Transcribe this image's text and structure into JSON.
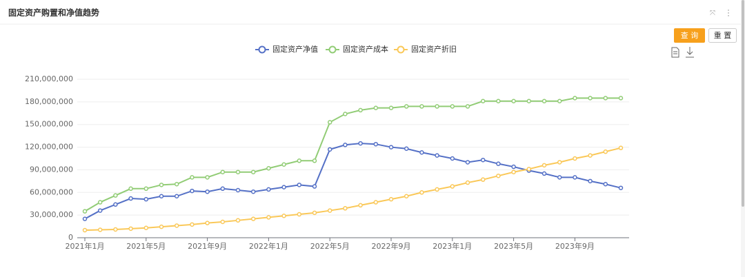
{
  "title": "固定资产购置和净值趋势",
  "buttons": [
    "查 询",
    "重 置"
  ],
  "chart_data": {
    "type": "line",
    "categories": [
      "2021年1月",
      null,
      null,
      null,
      "2021年5月",
      null,
      null,
      null,
      "2021年9月",
      null,
      null,
      null,
      "2022年1月",
      null,
      null,
      null,
      "2022年5月",
      null,
      null,
      null,
      "2022年9月",
      null,
      null,
      null,
      "2023年1月",
      null,
      null,
      null,
      "2023年5月",
      null,
      null,
      null,
      "2023年9月",
      null,
      null,
      null
    ],
    "series": [
      {
        "name": "固定资产净值",
        "color": "#5470c6",
        "values": [
          25000000,
          36000000,
          44000000,
          52000000,
          51000000,
          55000000,
          55000000,
          62000000,
          61000000,
          65000000,
          63000000,
          61000000,
          64000000,
          67000000,
          70000000,
          68000000,
          117000000,
          123000000,
          125000000,
          124000000,
          120000000,
          118000000,
          113000000,
          109000000,
          105000000,
          100000000,
          103000000,
          98000000,
          94000000,
          89000000,
          85000000,
          80000000,
          80000000,
          75000000,
          71000000,
          66000000
        ]
      },
      {
        "name": "固定资产成本",
        "color": "#91cc75",
        "values": [
          35000000,
          47000000,
          56000000,
          65000000,
          65000000,
          70000000,
          71000000,
          80000000,
          80000000,
          87000000,
          87000000,
          87000000,
          92000000,
          97000000,
          102000000,
          102000000,
          153000000,
          164000000,
          169000000,
          172000000,
          172000000,
          174000000,
          174000000,
          174000000,
          174000000,
          174000000,
          181000000,
          181000000,
          181000000,
          181000000,
          181000000,
          181000000,
          185000000,
          185000000,
          185000000,
          185000000
        ]
      },
      {
        "name": "固定资产折旧",
        "color": "#fac858",
        "values": [
          10000000,
          10500000,
          11000000,
          12000000,
          13000000,
          14500000,
          16000000,
          17500000,
          19500000,
          21000000,
          23000000,
          25000000,
          27000000,
          29000000,
          31000000,
          33000000,
          36000000,
          39000000,
          43000000,
          47000000,
          51000000,
          55000000,
          60000000,
          64000000,
          68000000,
          73000000,
          77000000,
          82000000,
          87000000,
          91000000,
          96000000,
          100000000,
          105000000,
          109000000,
          114000000,
          119000000
        ]
      }
    ],
    "ylim": [
      0,
      210000000
    ],
    "yticks": [
      0,
      {
        "value": 30000000,
        "label": "30,000,000"
      },
      {
        "value": 60000000,
        "label": "60,000,000"
      },
      {
        "value": 90000000,
        "label": "90,000,000"
      },
      {
        "value": 120000000,
        "label": "120,000,000"
      },
      {
        "value": 150000000,
        "label": "150,000,000"
      },
      {
        "value": 180000000,
        "label": "180,000,000"
      },
      {
        "value": 210000000,
        "label": "210,000,000"
      }
    ],
    "grid": true,
    "legend": "top"
  }
}
